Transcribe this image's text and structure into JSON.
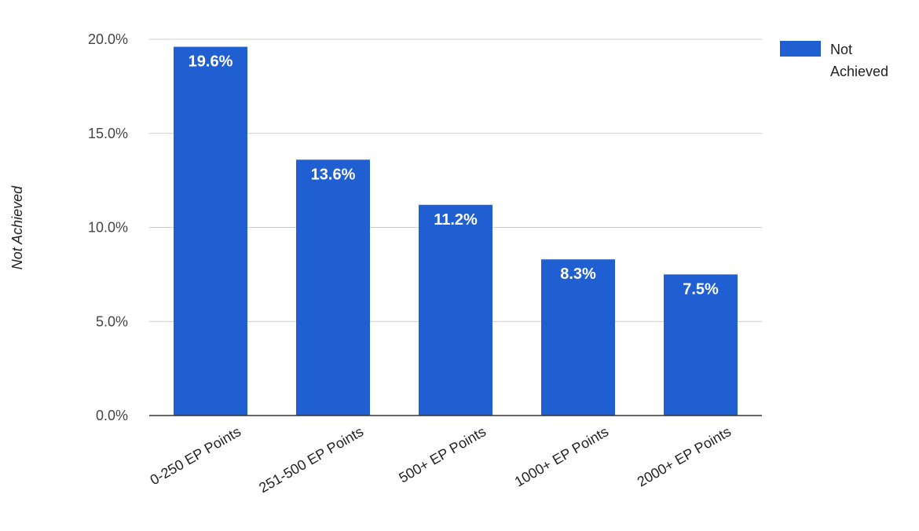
{
  "chart_data": {
    "type": "bar",
    "categories": [
      "0-250 EP Points",
      "251-500 EP Points",
      "500+ EP Points",
      "1000+ EP Points",
      "2000+ EP Points"
    ],
    "series": [
      {
        "name": "Not Achieved",
        "values": [
          19.6,
          13.6,
          11.2,
          8.3,
          7.5
        ],
        "data_labels": [
          "19.6%",
          "13.6%",
          "11.2%",
          "8.3%",
          "7.5%"
        ]
      }
    ],
    "title": "",
    "xlabel": "",
    "ylabel": "Not Achieved",
    "ylim": [
      0,
      20
    ],
    "yticks": [
      0,
      5,
      10,
      15,
      20
    ],
    "ytick_labels": [
      "0.0%",
      "5.0%",
      "10.0%",
      "15.0%",
      "20.0%"
    ],
    "grid": true,
    "legend": {
      "position": "top-right",
      "entries": [
        {
          "lines": [
            "Not",
            "Achieved"
          ]
        }
      ]
    },
    "colors": {
      "bar": "#1f5fd2",
      "grid": "#cccccc",
      "axis": "#333333"
    }
  }
}
